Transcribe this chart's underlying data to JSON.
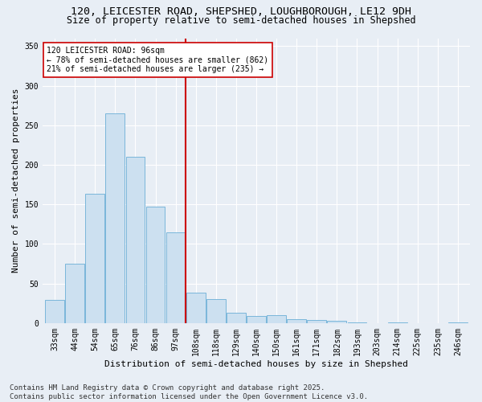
{
  "title_line1": "120, LEICESTER ROAD, SHEPSHED, LOUGHBOROUGH, LE12 9DH",
  "title_line2": "Size of property relative to semi-detached houses in Shepshed",
  "xlabel": "Distribution of semi-detached houses by size in Shepshed",
  "ylabel": "Number of semi-detached properties",
  "categories": [
    "33sqm",
    "44sqm",
    "54sqm",
    "65sqm",
    "76sqm",
    "86sqm",
    "97sqm",
    "108sqm",
    "118sqm",
    "129sqm",
    "140sqm",
    "150sqm",
    "161sqm",
    "171sqm",
    "182sqm",
    "193sqm",
    "203sqm",
    "214sqm",
    "225sqm",
    "235sqm",
    "246sqm"
  ],
  "values": [
    29,
    75,
    163,
    265,
    210,
    147,
    115,
    38,
    30,
    13,
    9,
    10,
    5,
    4,
    3,
    1,
    0,
    1,
    0,
    0,
    1
  ],
  "bar_color": "#cce0f0",
  "bar_edge_color": "#6aaed6",
  "vline_x_idx": 6,
  "vline_color": "#cc0000",
  "annotation_text": "120 LEICESTER ROAD: 96sqm\n← 78% of semi-detached houses are smaller (862)\n21% of semi-detached houses are larger (235) →",
  "annotation_box_color": "#ffffff",
  "annotation_box_edge": "#cc0000",
  "background_color": "#e8eef5",
  "plot_background": "#e8eef5",
  "ylim": [
    0,
    360
  ],
  "yticks": [
    0,
    50,
    100,
    150,
    200,
    250,
    300,
    350
  ],
  "footer_line1": "Contains HM Land Registry data © Crown copyright and database right 2025.",
  "footer_line2": "Contains public sector information licensed under the Open Government Licence v3.0.",
  "grid_color": "#ffffff",
  "title_fontsize": 9.5,
  "subtitle_fontsize": 8.5,
  "axis_label_fontsize": 8,
  "tick_fontsize": 7,
  "annotation_fontsize": 7,
  "footer_fontsize": 6.5
}
